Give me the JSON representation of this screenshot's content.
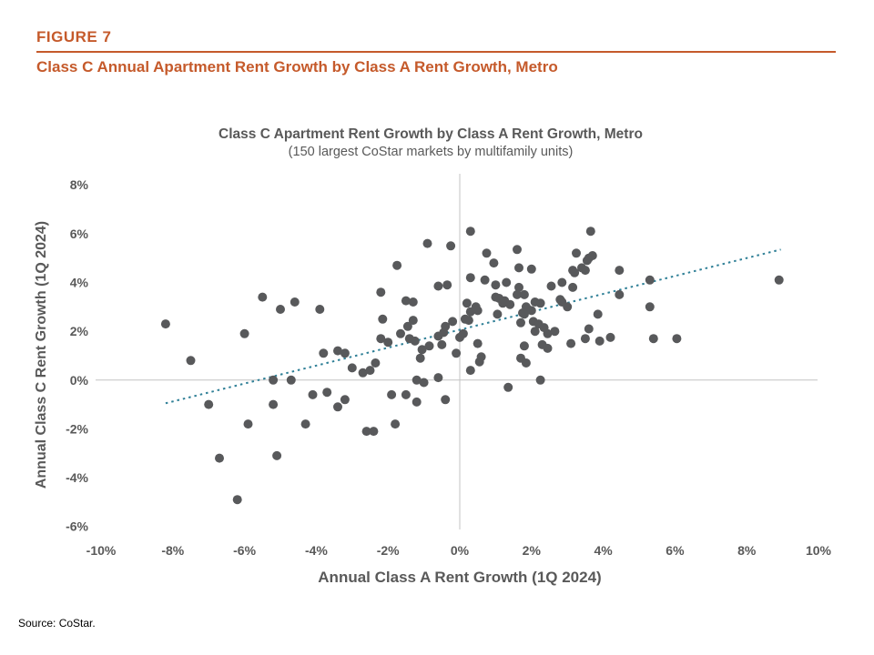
{
  "figure": {
    "label": "FIGURE 7",
    "title": "Class C Annual Apartment Rent Growth by Class A Rent Growth, Metro"
  },
  "source": "Source: CoStar.",
  "colors": {
    "accent": "#C55A2B",
    "title_text": "#595959",
    "tick_text": "#595959",
    "point": "#58595B",
    "trendline": "#2E7F96",
    "gridline": "#C3C3C3",
    "source_text": "#000000"
  },
  "chart_data": {
    "type": "scatter",
    "title": "Class C Apartment Rent Growth by Class A Rent Growth, Metro",
    "subtitle": "(150 largest CoStar markets by multifamily units)",
    "xlabel": "Annual Class A Rent Growth (1Q 2024)",
    "ylabel": "Annual Class C Rent Growth (1Q 2024)",
    "xlim": [
      -10,
      10
    ],
    "ylim": [
      -6,
      8
    ],
    "x_ticks": [
      -10,
      -8,
      -6,
      -4,
      -2,
      0,
      2,
      4,
      6,
      8,
      10
    ],
    "x_tick_labels": [
      "-10%",
      "-8%",
      "-6%",
      "-4%",
      "-2%",
      "0%",
      "2%",
      "4%",
      "6%",
      "8%",
      "10%"
    ],
    "y_ticks": [
      -6,
      -4,
      -2,
      0,
      2,
      4,
      6,
      8
    ],
    "y_tick_labels": [
      "-6%",
      "-4%",
      "-2%",
      "0%",
      "2%",
      "4%",
      "6%",
      "8%"
    ],
    "grid": "zero-lines-only",
    "legend": "none",
    "trendline": {
      "style": "dotted",
      "from": [
        -8.2,
        -0.95
      ],
      "to": [
        8.95,
        5.35
      ]
    },
    "points": [
      [
        -8.2,
        2.3
      ],
      [
        -7.5,
        0.8
      ],
      [
        -7.0,
        -1.0
      ],
      [
        -6.7,
        -3.2
      ],
      [
        -6.2,
        -4.9
      ],
      [
        -6.0,
        1.9
      ],
      [
        -5.9,
        -1.8
      ],
      [
        -5.5,
        3.4
      ],
      [
        -5.2,
        0.0
      ],
      [
        -5.2,
        -1.0
      ],
      [
        -5.1,
        -3.1
      ],
      [
        -5.0,
        2.9
      ],
      [
        -4.7,
        0.0
      ],
      [
        -4.6,
        3.2
      ],
      [
        -4.3,
        -1.8
      ],
      [
        -4.1,
        -0.6
      ],
      [
        -3.9,
        2.9
      ],
      [
        -3.8,
        1.1
      ],
      [
        -3.7,
        -0.5
      ],
      [
        -3.4,
        1.2
      ],
      [
        -3.4,
        -1.1
      ],
      [
        -3.2,
        1.1
      ],
      [
        -3.2,
        -0.8
      ],
      [
        -3.0,
        0.5
      ],
      [
        -2.7,
        0.3
      ],
      [
        -2.6,
        -2.1
      ],
      [
        -2.5,
        0.4
      ],
      [
        -2.4,
        -2.1
      ],
      [
        -2.35,
        0.7
      ],
      [
        -2.2,
        3.6
      ],
      [
        -2.2,
        1.7
      ],
      [
        -2.15,
        2.5
      ],
      [
        -2.0,
        1.55
      ],
      [
        -1.9,
        -0.6
      ],
      [
        -1.8,
        -1.8
      ],
      [
        -1.75,
        4.7
      ],
      [
        -1.65,
        1.9
      ],
      [
        -1.5,
        3.25
      ],
      [
        -1.5,
        -0.6
      ],
      [
        -1.45,
        2.2
      ],
      [
        -1.4,
        1.7
      ],
      [
        -1.3,
        3.2
      ],
      [
        -1.3,
        2.45
      ],
      [
        -1.25,
        1.6
      ],
      [
        -1.2,
        0.0
      ],
      [
        -1.2,
        -0.9
      ],
      [
        -1.1,
        0.9
      ],
      [
        -1.05,
        1.25
      ],
      [
        -1.0,
        -0.1
      ],
      [
        -0.9,
        5.6
      ],
      [
        -0.85,
        1.4
      ],
      [
        -0.6,
        3.85
      ],
      [
        -0.6,
        1.8
      ],
      [
        -0.6,
        0.1
      ],
      [
        -0.5,
        1.45
      ],
      [
        -0.45,
        1.95
      ],
      [
        -0.4,
        2.2
      ],
      [
        -0.4,
        -0.8
      ],
      [
        -0.35,
        3.9
      ],
      [
        -0.25,
        5.5
      ],
      [
        -0.2,
        2.4
      ],
      [
        -0.1,
        1.1
      ],
      [
        0.0,
        1.75
      ],
      [
        0.1,
        1.9
      ],
      [
        0.15,
        2.5
      ],
      [
        0.2,
        3.15
      ],
      [
        0.25,
        2.45
      ],
      [
        0.3,
        6.1
      ],
      [
        0.3,
        4.2
      ],
      [
        0.3,
        2.8
      ],
      [
        0.3,
        0.4
      ],
      [
        0.45,
        3.0
      ],
      [
        0.5,
        2.85
      ],
      [
        0.5,
        1.5
      ],
      [
        0.55,
        0.75
      ],
      [
        0.6,
        0.95
      ],
      [
        0.7,
        4.1
      ],
      [
        0.75,
        5.2
      ],
      [
        0.95,
        4.8
      ],
      [
        1.0,
        3.9
      ],
      [
        1.0,
        3.4
      ],
      [
        1.05,
        2.7
      ],
      [
        1.1,
        3.35
      ],
      [
        1.2,
        3.15
      ],
      [
        1.25,
        3.25
      ],
      [
        1.3,
        4.0
      ],
      [
        1.35,
        -0.3
      ],
      [
        1.4,
        3.1
      ],
      [
        1.6,
        5.35
      ],
      [
        1.6,
        3.5
      ],
      [
        1.65,
        4.6
      ],
      [
        1.65,
        3.8
      ],
      [
        1.7,
        2.35
      ],
      [
        1.7,
        0.9
      ],
      [
        1.75,
        2.75
      ],
      [
        1.8,
        3.5
      ],
      [
        1.8,
        2.7
      ],
      [
        1.8,
        1.4
      ],
      [
        1.85,
        3.0
      ],
      [
        1.85,
        0.7
      ],
      [
        1.9,
        2.9
      ],
      [
        2.0,
        4.55
      ],
      [
        2.0,
        2.85
      ],
      [
        2.05,
        2.4
      ],
      [
        2.1,
        3.2
      ],
      [
        2.1,
        2.0
      ],
      [
        2.2,
        2.3
      ],
      [
        2.25,
        3.15
      ],
      [
        2.25,
        0.0
      ],
      [
        2.3,
        1.45
      ],
      [
        2.35,
        2.15
      ],
      [
        2.45,
        1.9
      ],
      [
        2.45,
        1.3
      ],
      [
        2.55,
        3.85
      ],
      [
        2.65,
        2.0
      ],
      [
        2.8,
        3.3
      ],
      [
        2.85,
        4.0
      ],
      [
        2.85,
        3.2
      ],
      [
        3.0,
        3.0
      ],
      [
        3.1,
        1.5
      ],
      [
        3.15,
        3.8
      ],
      [
        3.15,
        4.5
      ],
      [
        3.2,
        4.4
      ],
      [
        3.25,
        5.2
      ],
      [
        3.4,
        4.6
      ],
      [
        3.5,
        4.5
      ],
      [
        3.5,
        1.7
      ],
      [
        3.55,
        4.9
      ],
      [
        3.6,
        5.0
      ],
      [
        3.6,
        2.1
      ],
      [
        3.65,
        6.1
      ],
      [
        3.7,
        5.1
      ],
      [
        3.85,
        2.7
      ],
      [
        3.9,
        1.6
      ],
      [
        4.2,
        1.75
      ],
      [
        4.45,
        4.5
      ],
      [
        4.45,
        3.5
      ],
      [
        5.3,
        4.1
      ],
      [
        5.3,
        3.0
      ],
      [
        5.4,
        1.7
      ],
      [
        6.05,
        1.7
      ],
      [
        8.9,
        4.1
      ]
    ]
  }
}
